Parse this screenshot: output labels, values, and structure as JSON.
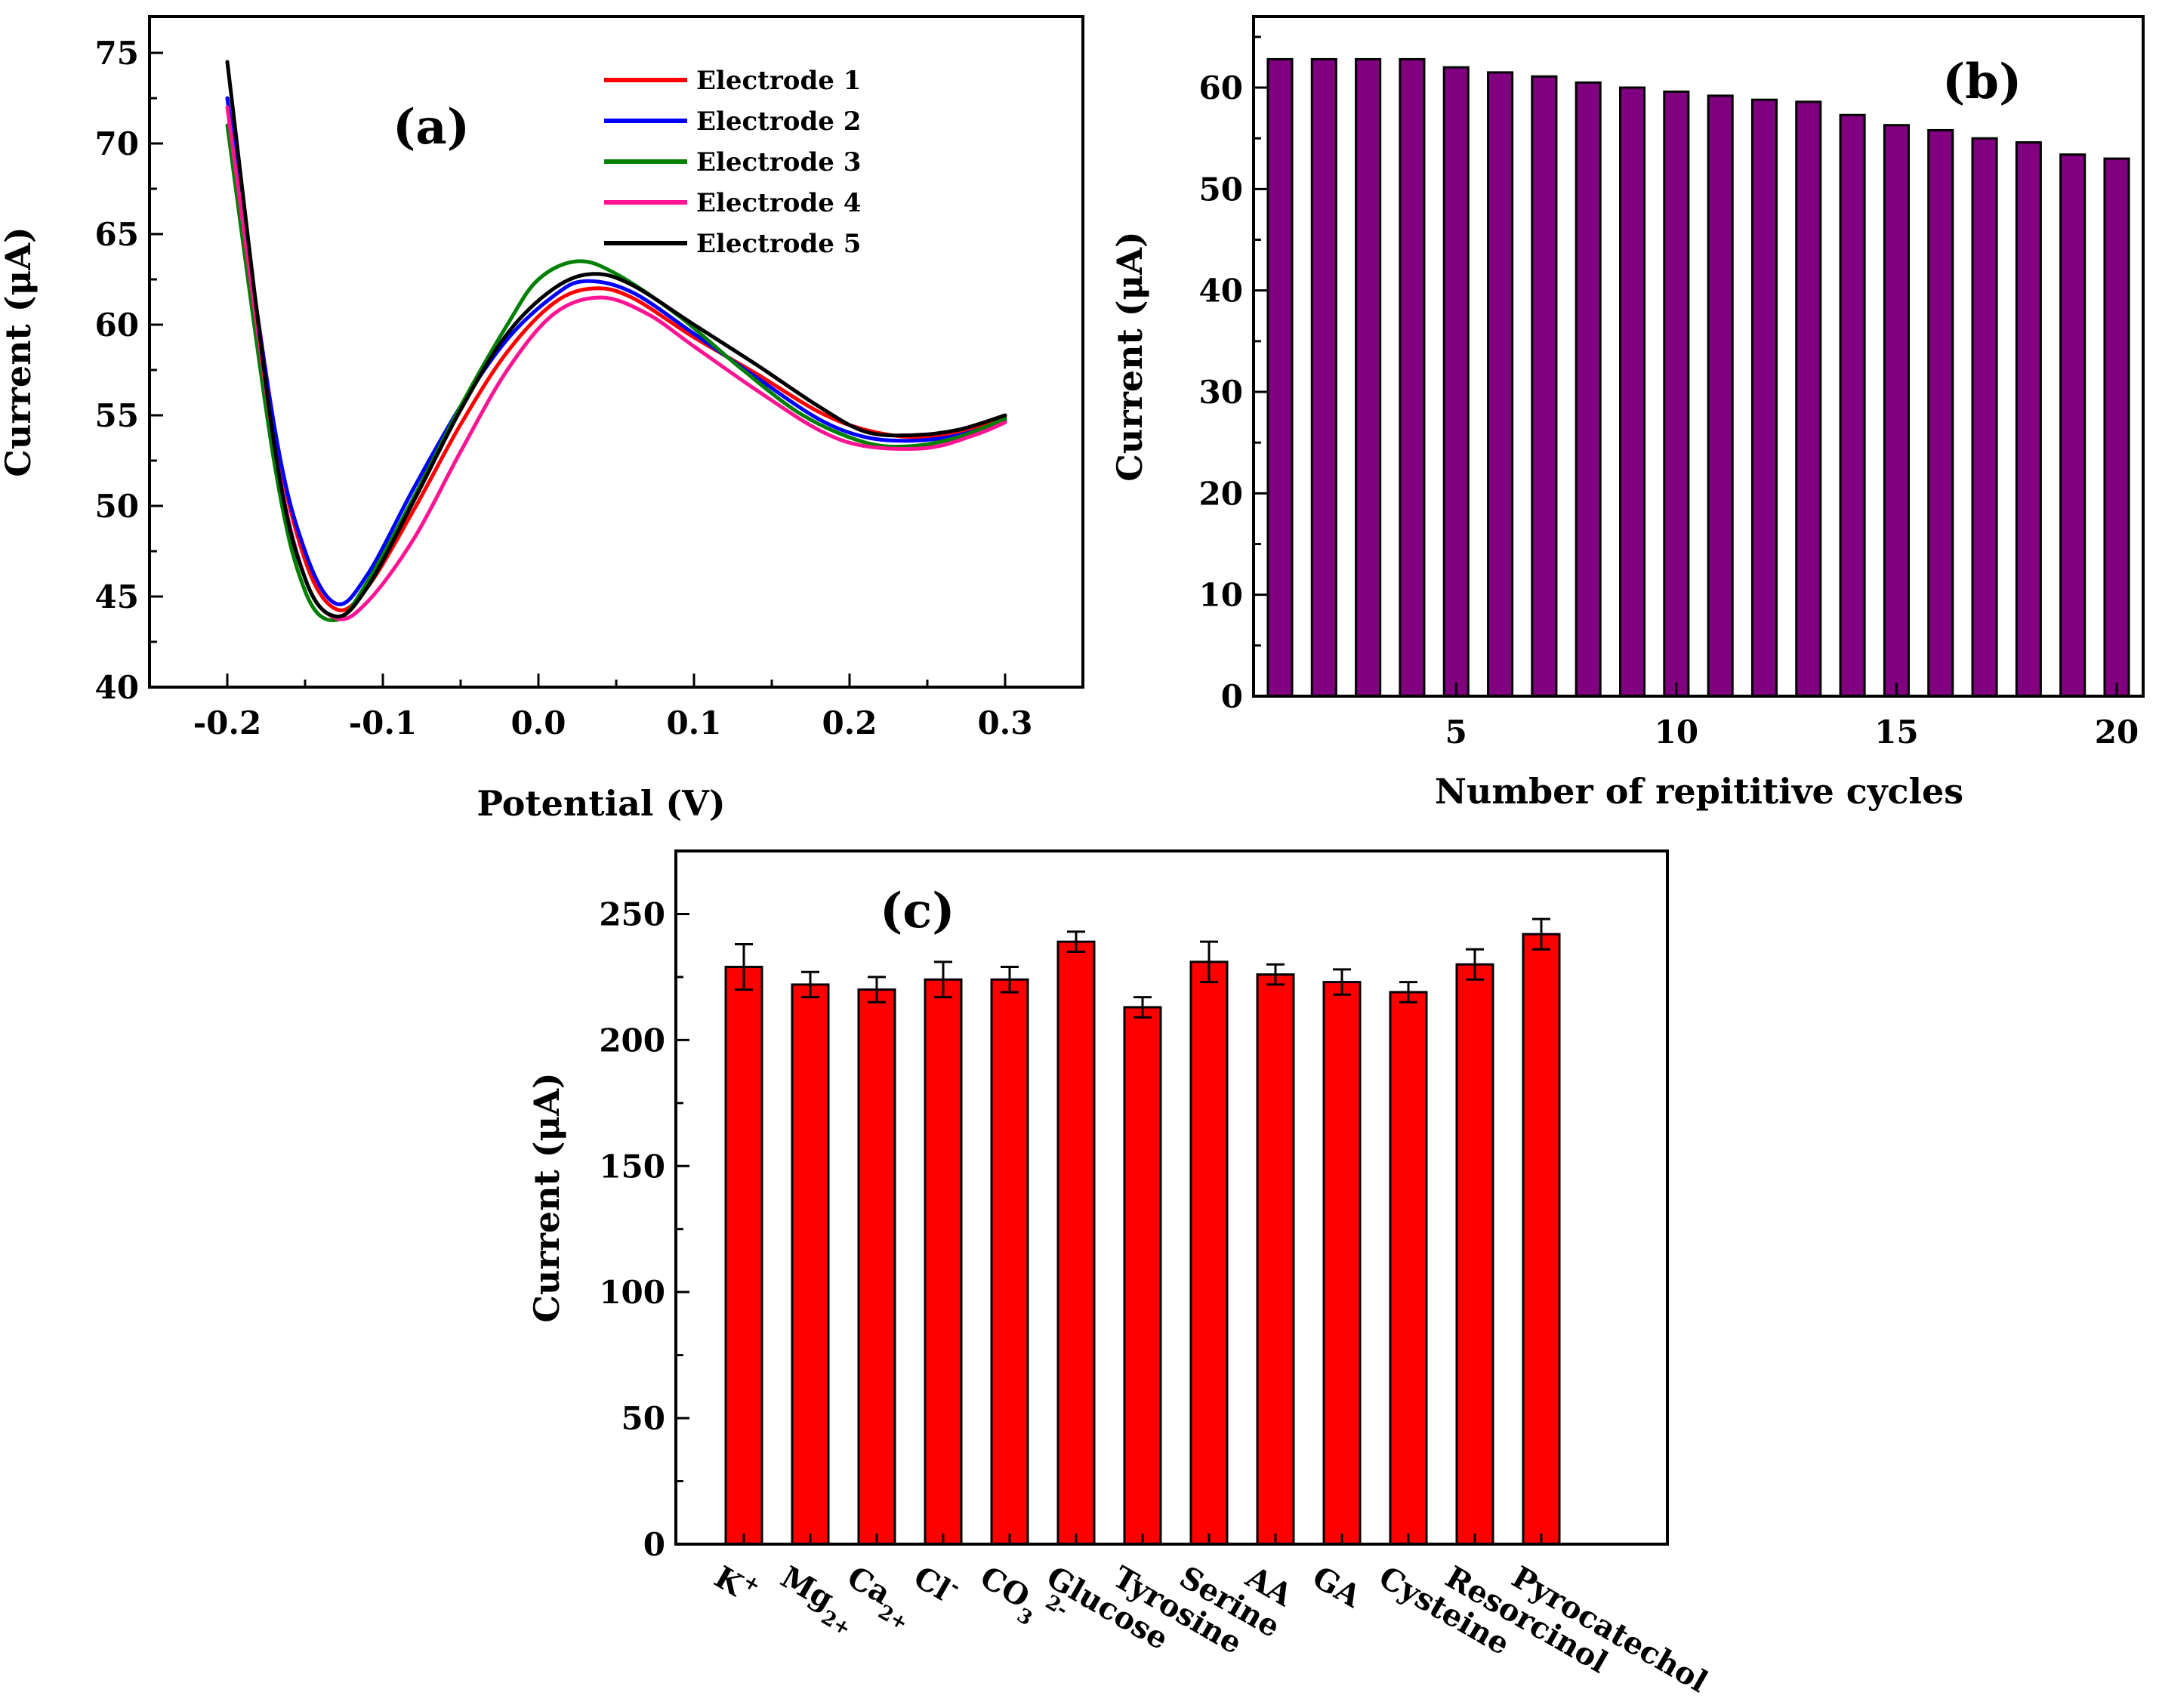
{
  "chart_data": [
    {
      "id": "a",
      "type": "line",
      "panel_label": "(a)",
      "xlabel": "Potential  (V)",
      "ylabel": "Current (μA)",
      "xlim": [
        -0.25,
        0.35
      ],
      "ylim": [
        40,
        77
      ],
      "xticks": [
        -0.2,
        -0.1,
        0.0,
        0.1,
        0.2,
        0.3
      ],
      "xtick_labels": [
        "-0.2",
        "-0.1",
        "0.0",
        "0.1",
        "0.2",
        "0.3"
      ],
      "yticks": [
        40,
        45,
        50,
        55,
        60,
        65,
        70,
        75
      ],
      "ytick_labels": [
        "40",
        "45",
        "50",
        "55",
        "60",
        "65",
        "70",
        "75"
      ],
      "legend_position": "top-right",
      "series": [
        {
          "name": "Electrode 1",
          "color": "#ff0000",
          "x": [
            -0.2,
            -0.17,
            -0.15,
            -0.13,
            -0.11,
            -0.08,
            -0.05,
            -0.02,
            0.01,
            0.035,
            0.06,
            0.1,
            0.14,
            0.18,
            0.21,
            0.24,
            0.27,
            0.3
          ],
          "y": [
            72.5,
            54.5,
            47.0,
            44.3,
            45.5,
            49.8,
            54.5,
            58.5,
            61.2,
            62.0,
            61.5,
            59.3,
            57.3,
            55.2,
            54.2,
            53.8,
            54.0,
            54.9
          ]
        },
        {
          "name": "Electrode 2",
          "color": "#0000ff",
          "x": [
            -0.2,
            -0.17,
            -0.15,
            -0.13,
            -0.11,
            -0.08,
            -0.05,
            -0.02,
            0.01,
            0.03,
            0.06,
            0.1,
            0.14,
            0.18,
            0.21,
            0.24,
            0.27,
            0.3
          ],
          "y": [
            72.5,
            54.5,
            47.5,
            44.6,
            46.2,
            51.0,
            55.5,
            59.2,
            61.6,
            62.4,
            61.8,
            59.5,
            57.1,
            54.8,
            53.8,
            53.6,
            53.9,
            54.7
          ]
        },
        {
          "name": "Electrode 3",
          "color": "#008000",
          "x": [
            -0.2,
            -0.17,
            -0.15,
            -0.13,
            -0.11,
            -0.08,
            -0.05,
            -0.02,
            0.0,
            0.025,
            0.05,
            0.09,
            0.13,
            0.17,
            0.21,
            0.24,
            0.27,
            0.3
          ],
          "y": [
            71.0,
            52.5,
            45.3,
            43.7,
            45.8,
            50.5,
            55.5,
            60.0,
            62.5,
            63.5,
            62.8,
            60.5,
            57.6,
            55.0,
            53.5,
            53.3,
            53.8,
            54.8
          ]
        },
        {
          "name": "Electrode 4",
          "color": "#ff1493",
          "x": [
            -0.2,
            -0.17,
            -0.15,
            -0.13,
            -0.11,
            -0.08,
            -0.05,
            -0.02,
            0.01,
            0.04,
            0.07,
            0.1,
            0.14,
            0.18,
            0.21,
            0.25,
            0.28,
            0.3
          ],
          "y": [
            72.0,
            53.5,
            46.0,
            43.8,
            44.7,
            48.2,
            53.0,
            57.5,
            60.6,
            61.5,
            60.6,
            58.8,
            56.4,
            54.2,
            53.3,
            53.2,
            53.9,
            54.6
          ]
        },
        {
          "name": "Electrode 5",
          "color": "#000000",
          "x": [
            -0.2,
            -0.17,
            -0.15,
            -0.13,
            -0.11,
            -0.08,
            -0.05,
            -0.02,
            0.01,
            0.035,
            0.06,
            0.1,
            0.14,
            0.18,
            0.21,
            0.24,
            0.27,
            0.3
          ],
          "y": [
            74.5,
            53.5,
            46.0,
            43.9,
            45.5,
            50.3,
            55.3,
            59.5,
            62.0,
            62.8,
            62.2,
            60.0,
            57.8,
            55.5,
            54.1,
            53.9,
            54.2,
            55.0
          ]
        }
      ]
    },
    {
      "id": "b",
      "type": "bar",
      "panel_label": "(b)",
      "xlabel": "Number of repititive cycles",
      "ylabel": "Current (μA)",
      "xlim": [
        0.4,
        20.6
      ],
      "ylim": [
        0,
        67
      ],
      "xticks": [
        5,
        10,
        15,
        20
      ],
      "xtick_labels": [
        "5",
        "10",
        "15",
        "20"
      ],
      "yticks": [
        0,
        10,
        20,
        30,
        40,
        50,
        60
      ],
      "ytick_labels": [
        "0",
        "10",
        "20",
        "30",
        "40",
        "50",
        "60"
      ],
      "bar_color": "#800080",
      "x": [
        1,
        2,
        3,
        4,
        5,
        6,
        7,
        8,
        9,
        10,
        11,
        12,
        13,
        14,
        15,
        16,
        17,
        18,
        19,
        20
      ],
      "values": [
        62.8,
        62.8,
        62.8,
        62.8,
        62.0,
        61.5,
        61.1,
        60.5,
        60.0,
        59.6,
        59.2,
        58.8,
        58.6,
        57.3,
        56.3,
        55.8,
        55.0,
        54.6,
        53.4,
        53.0
      ]
    },
    {
      "id": "c",
      "type": "bar",
      "panel_label": "(c)",
      "xlabel": "",
      "ylabel": "Current (μA)",
      "ylim": [
        0,
        275
      ],
      "yticks": [
        0,
        50,
        100,
        150,
        200,
        250
      ],
      "ytick_labels": [
        "0",
        "50",
        "100",
        "150",
        "200",
        "250"
      ],
      "bar_color": "#ff0000",
      "categories": [
        {
          "label": "K",
          "sup": "+"
        },
        {
          "label": "Mg",
          "sub": "2+"
        },
        {
          "label": "Ca",
          "sub": "2+"
        },
        {
          "label": "Cl",
          "sup": "-"
        },
        {
          "label": "CO",
          "sub": "3",
          "sup": "2-"
        },
        {
          "label": "Glucose"
        },
        {
          "label": "Tyrosine"
        },
        {
          "label": "Serine"
        },
        {
          "label": "AA"
        },
        {
          "label": "GA"
        },
        {
          "label": "Cysteine"
        },
        {
          "label": "Resorcinol"
        },
        {
          "label": "Pyrocatechol"
        }
      ],
      "values": [
        229,
        222,
        220,
        224,
        224,
        239,
        213,
        231,
        226,
        223,
        219,
        230,
        242
      ],
      "errors": [
        9,
        5,
        5,
        7,
        5,
        4,
        4,
        8,
        4,
        5,
        4,
        6,
        6
      ]
    }
  ]
}
